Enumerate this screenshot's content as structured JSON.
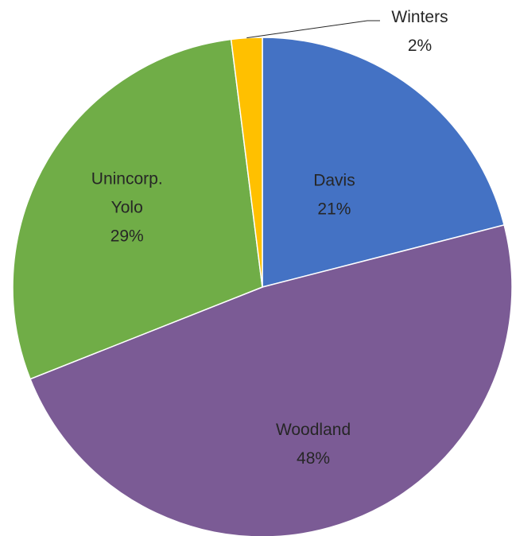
{
  "chart_data": {
    "type": "pie",
    "title": "",
    "slices": [
      {
        "name": "Davis",
        "value": 21,
        "label": "21%",
        "color": "#4472C4"
      },
      {
        "name": "Woodland",
        "value": 48,
        "label": "48%",
        "color": "#7B5B95"
      },
      {
        "name": "Unincorp. Yolo",
        "value": 29,
        "label": "29%",
        "color": "#70AD47"
      },
      {
        "name": "Winters",
        "value": 2,
        "label": "2%",
        "color": "#FFC000"
      }
    ],
    "start_angle": "12 o'clock",
    "direction": "clockwise",
    "legend": "none",
    "labels": "data labels with category name and percent"
  }
}
